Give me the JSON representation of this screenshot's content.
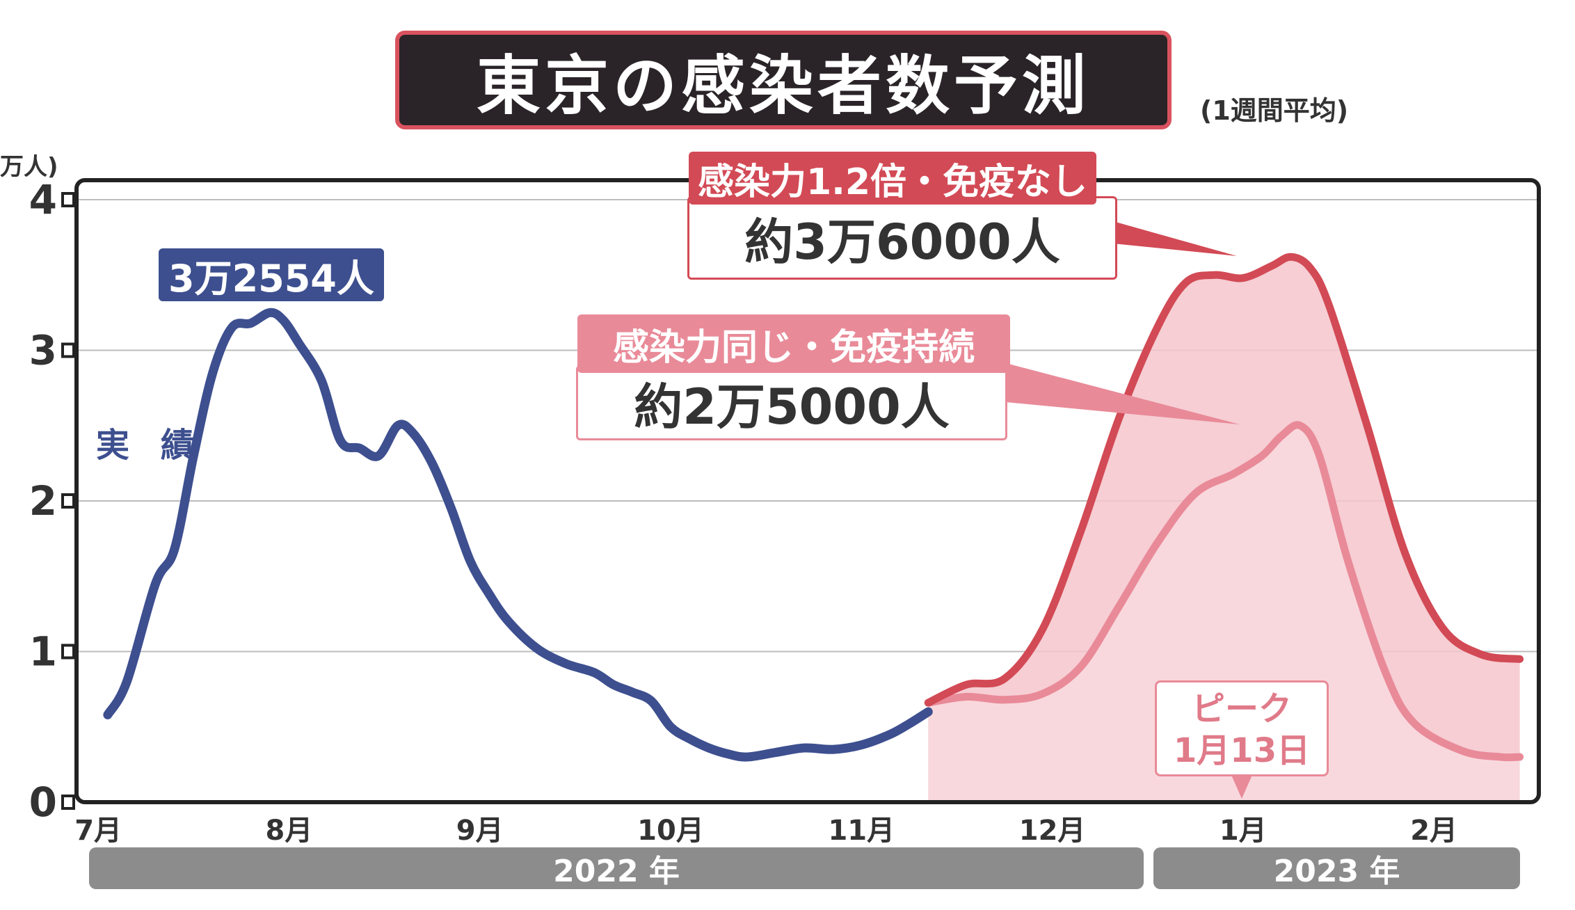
{
  "title": "東京の感染者数予測",
  "subtitle": "(1週間平均)",
  "unit_label": "万人)",
  "actual_label": "実 績",
  "actual_peak_label": "3万2554人",
  "callouts": {
    "high": {
      "head": "感染力1.2倍・免疫なし",
      "value": "約3万6000人"
    },
    "low": {
      "head": "感染力同じ・免疫持続",
      "value": "約2万5000人"
    }
  },
  "peak_date": {
    "line1": "ピーク",
    "line2": "1月13日"
  },
  "years": [
    "2022 年",
    "2023 年"
  ],
  "colors": {
    "actual": "#3d4f8f",
    "scenario_high": "#d24a55",
    "scenario_low": "#e98a98",
    "fill": "#f4c5cc"
  },
  "chart_data": {
    "type": "line",
    "title": "東京の感染者数予測",
    "subtitle": "(1週間平均)",
    "ylabel": "万人",
    "ylim": [
      0,
      4
    ],
    "yticks": [
      0,
      1,
      2,
      3,
      4
    ],
    "xlim": [
      0,
      7.7
    ],
    "xticks": [
      {
        "x": 0.15,
        "label": "7月"
      },
      {
        "x": 1.15,
        "label": "8月"
      },
      {
        "x": 2.15,
        "label": "9月"
      },
      {
        "x": 3.15,
        "label": "10月"
      },
      {
        "x": 4.15,
        "label": "11月"
      },
      {
        "x": 5.15,
        "label": "12月"
      },
      {
        "x": 6.15,
        "label": "1月"
      },
      {
        "x": 7.15,
        "label": "2月"
      }
    ],
    "grid": true,
    "series": [
      {
        "name": "実績",
        "points": [
          [
            0.2,
            0.58
          ],
          [
            0.3,
            0.8
          ],
          [
            0.45,
            1.45
          ],
          [
            0.55,
            1.68
          ],
          [
            0.65,
            2.3
          ],
          [
            0.75,
            2.85
          ],
          [
            0.85,
            3.15
          ],
          [
            0.95,
            3.18
          ],
          [
            1.05,
            3.25
          ],
          [
            1.12,
            3.2
          ],
          [
            1.2,
            3.05
          ],
          [
            1.32,
            2.8
          ],
          [
            1.42,
            2.4
          ],
          [
            1.52,
            2.35
          ],
          [
            1.62,
            2.3
          ],
          [
            1.72,
            2.5
          ],
          [
            1.8,
            2.45
          ],
          [
            1.9,
            2.25
          ],
          [
            2.0,
            1.95
          ],
          [
            2.1,
            1.6
          ],
          [
            2.2,
            1.38
          ],
          [
            2.3,
            1.2
          ],
          [
            2.45,
            1.02
          ],
          [
            2.6,
            0.92
          ],
          [
            2.75,
            0.86
          ],
          [
            2.85,
            0.78
          ],
          [
            2.95,
            0.73
          ],
          [
            3.05,
            0.67
          ],
          [
            3.15,
            0.5
          ],
          [
            3.25,
            0.42
          ],
          [
            3.35,
            0.36
          ],
          [
            3.45,
            0.32
          ],
          [
            3.55,
            0.3
          ],
          [
            3.7,
            0.33
          ],
          [
            3.85,
            0.36
          ],
          [
            4.0,
            0.35
          ],
          [
            4.15,
            0.38
          ],
          [
            4.3,
            0.45
          ],
          [
            4.4,
            0.52
          ],
          [
            4.5,
            0.6
          ]
        ]
      },
      {
        "name": "感染力1.2倍・免疫なし",
        "points": [
          [
            4.5,
            0.66
          ],
          [
            4.7,
            0.78
          ],
          [
            4.9,
            0.82
          ],
          [
            5.1,
            1.15
          ],
          [
            5.3,
            1.8
          ],
          [
            5.5,
            2.55
          ],
          [
            5.7,
            3.15
          ],
          [
            5.85,
            3.45
          ],
          [
            6.0,
            3.5
          ],
          [
            6.15,
            3.48
          ],
          [
            6.3,
            3.56
          ],
          [
            6.4,
            3.62
          ],
          [
            6.5,
            3.55
          ],
          [
            6.6,
            3.3
          ],
          [
            6.8,
            2.5
          ],
          [
            7.0,
            1.65
          ],
          [
            7.2,
            1.15
          ],
          [
            7.4,
            0.98
          ],
          [
            7.6,
            0.95
          ]
        ]
      },
      {
        "name": "感染力同じ・免疫持続",
        "points": [
          [
            4.5,
            0.66
          ],
          [
            4.7,
            0.7
          ],
          [
            4.9,
            0.68
          ],
          [
            5.1,
            0.72
          ],
          [
            5.3,
            0.9
          ],
          [
            5.5,
            1.3
          ],
          [
            5.7,
            1.72
          ],
          [
            5.9,
            2.05
          ],
          [
            6.1,
            2.18
          ],
          [
            6.25,
            2.3
          ],
          [
            6.35,
            2.43
          ],
          [
            6.45,
            2.5
          ],
          [
            6.55,
            2.3
          ],
          [
            6.7,
            1.6
          ],
          [
            6.9,
            0.85
          ],
          [
            7.05,
            0.52
          ],
          [
            7.3,
            0.34
          ],
          [
            7.5,
            0.3
          ],
          [
            7.6,
            0.3
          ]
        ]
      }
    ],
    "annotations": [
      {
        "text": "3万2554人",
        "x": 1.1,
        "y": 3.25
      },
      {
        "text": "約3万6000人",
        "x": 6.4,
        "y": 3.62
      },
      {
        "text": "約2万5000人",
        "x": 6.45,
        "y": 2.5
      },
      {
        "text": "ピーク 1月13日",
        "x": 6.45,
        "y": 0
      }
    ]
  }
}
